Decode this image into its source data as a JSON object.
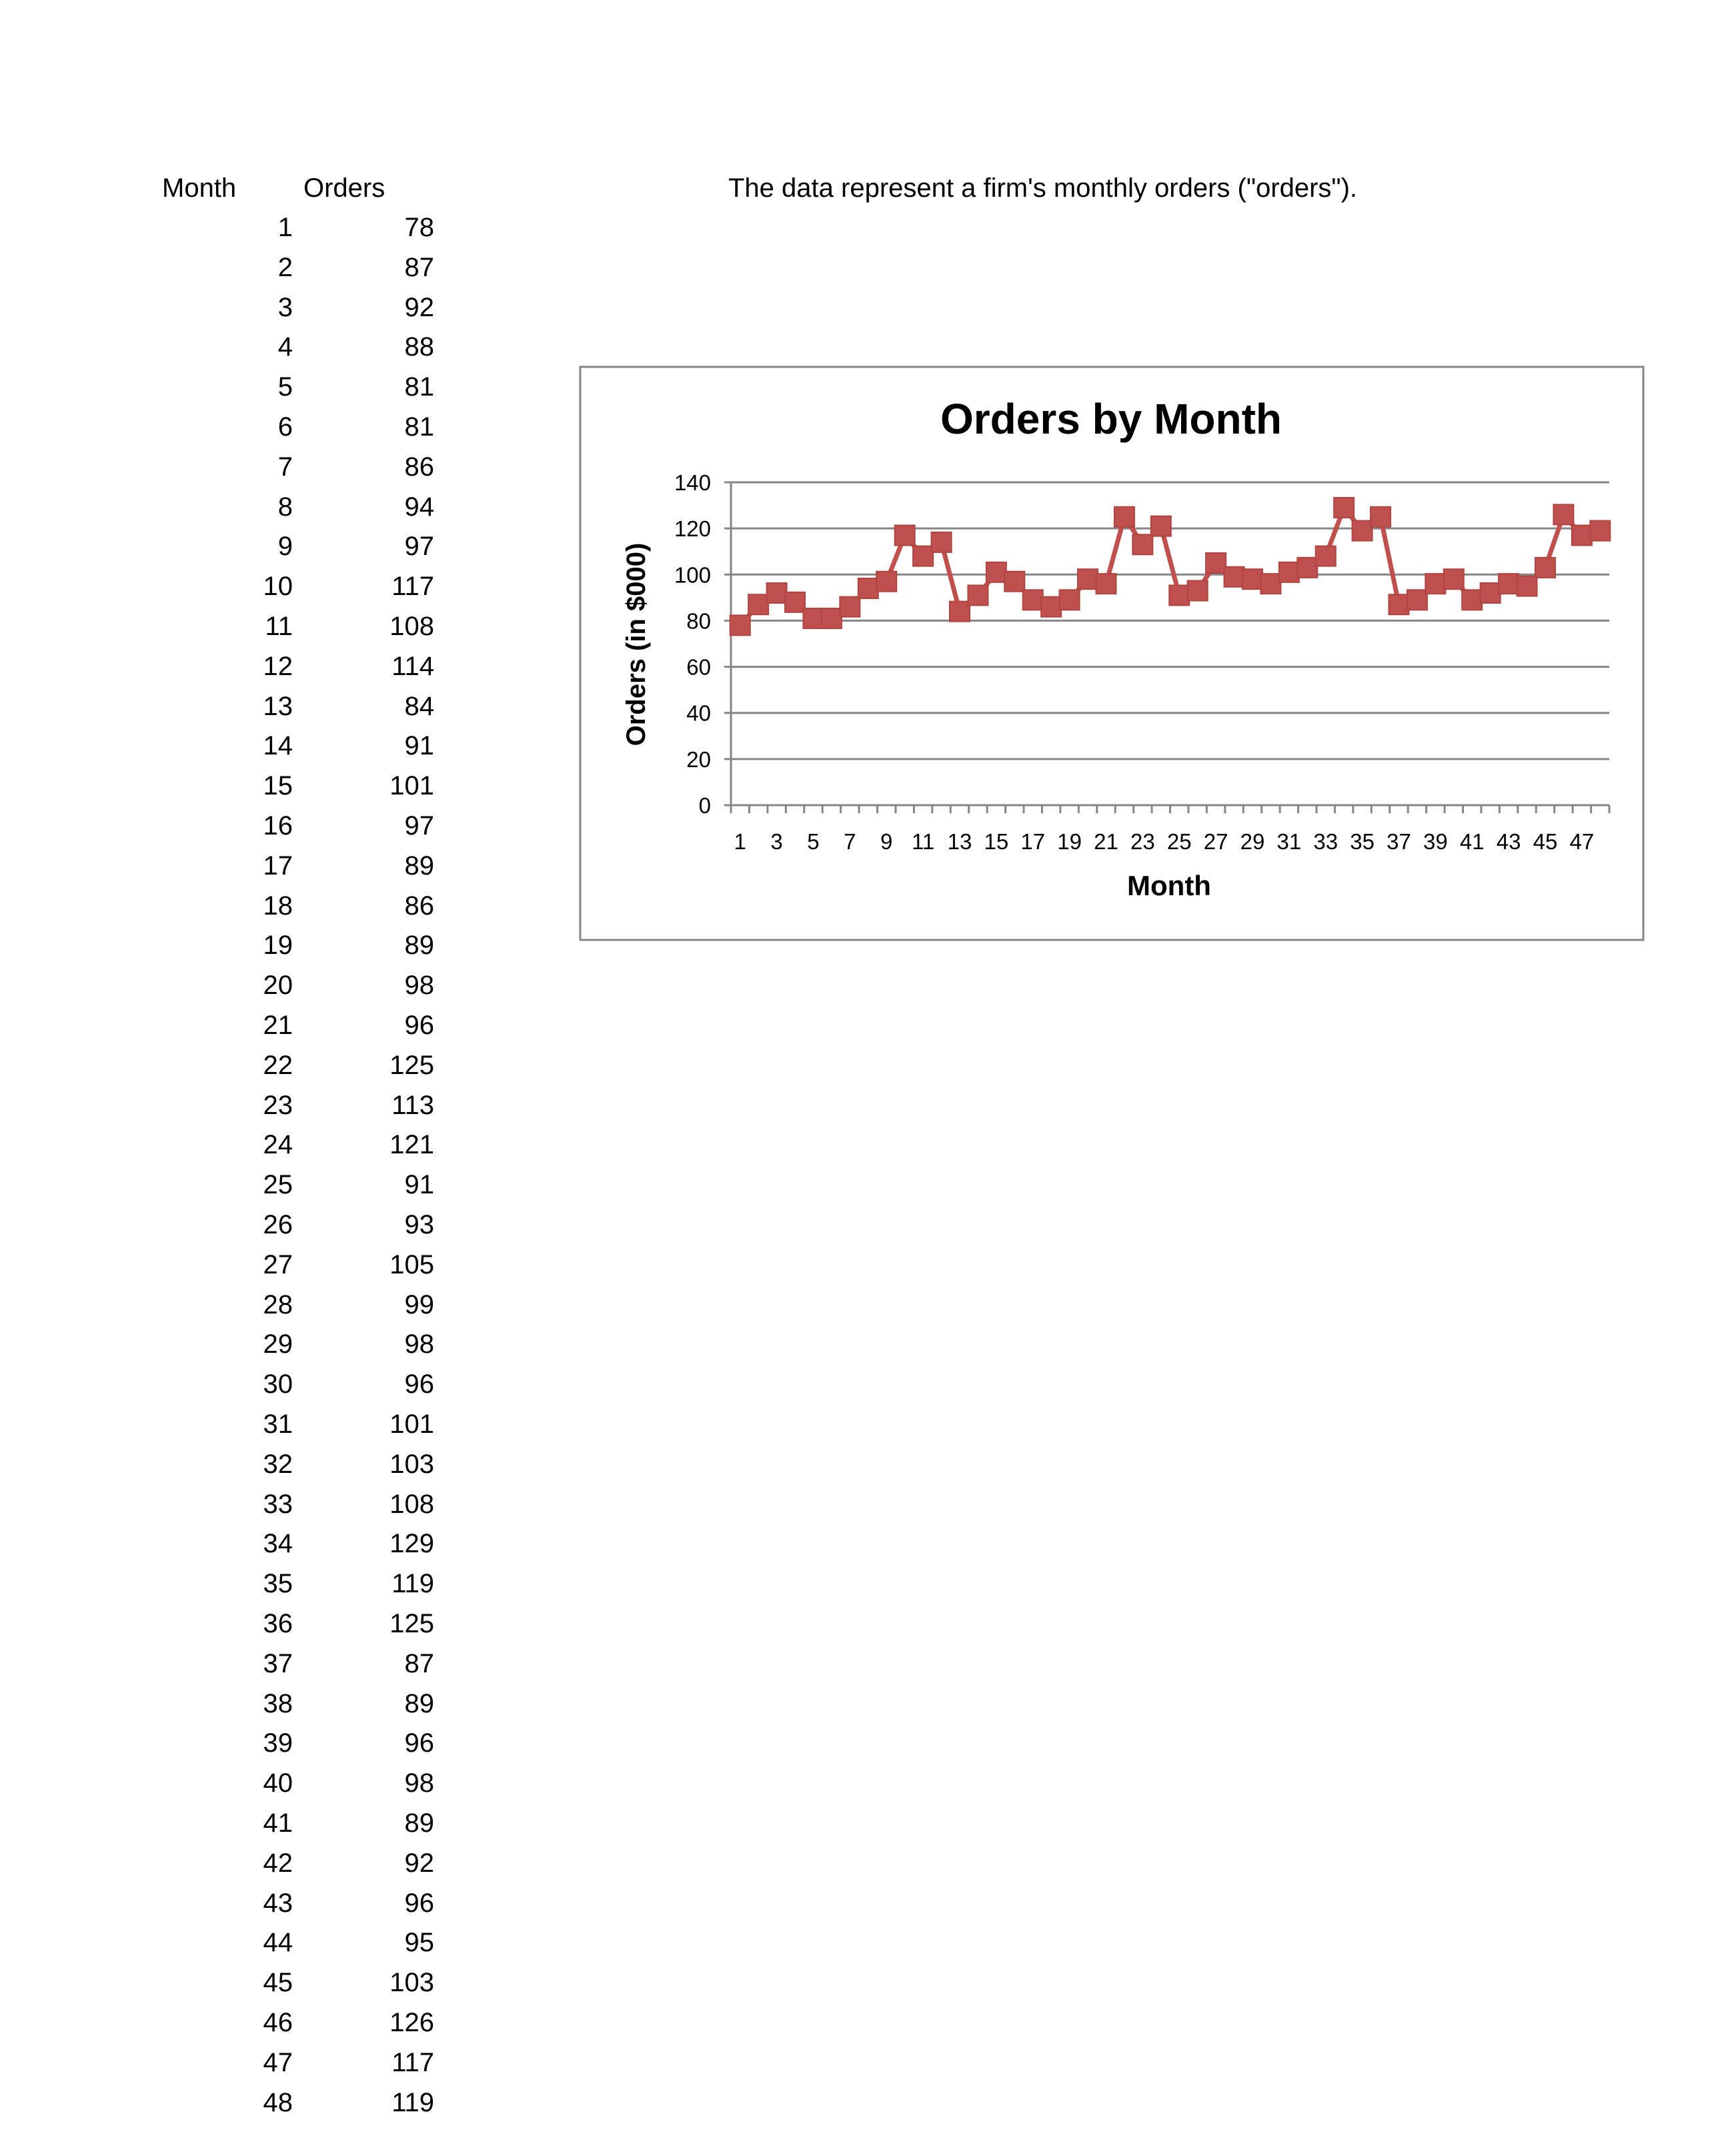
{
  "table": {
    "headers": [
      "Month",
      "Orders"
    ],
    "months": [
      1,
      2,
      3,
      4,
      5,
      6,
      7,
      8,
      9,
      10,
      11,
      12,
      13,
      14,
      15,
      16,
      17,
      18,
      19,
      20,
      21,
      22,
      23,
      24,
      25,
      26,
      27,
      28,
      29,
      30,
      31,
      32,
      33,
      34,
      35,
      36,
      37,
      38,
      39,
      40,
      41,
      42,
      43,
      44,
      45,
      46,
      47,
      48
    ],
    "orders": [
      78,
      87,
      92,
      88,
      81,
      81,
      86,
      94,
      97,
      117,
      108,
      114,
      84,
      91,
      101,
      97,
      89,
      86,
      89,
      98,
      96,
      125,
      113,
      121,
      91,
      93,
      105,
      99,
      98,
      96,
      101,
      103,
      108,
      129,
      119,
      125,
      87,
      89,
      96,
      98,
      89,
      92,
      96,
      95,
      103,
      126,
      117,
      119
    ]
  },
  "note": "The data represent a firm's monthly orders (\"orders\").",
  "chart_data": {
    "type": "line",
    "title": "Orders by Month",
    "xlabel": "Month",
    "ylabel": "Orders (in $000)",
    "categories": [
      1,
      2,
      3,
      4,
      5,
      6,
      7,
      8,
      9,
      10,
      11,
      12,
      13,
      14,
      15,
      16,
      17,
      18,
      19,
      20,
      21,
      22,
      23,
      24,
      25,
      26,
      27,
      28,
      29,
      30,
      31,
      32,
      33,
      34,
      35,
      36,
      37,
      38,
      39,
      40,
      41,
      42,
      43,
      44,
      45,
      46,
      47,
      48
    ],
    "x_tick_labels": [
      "1",
      "3",
      "5",
      "7",
      "9",
      "11",
      "13",
      "15",
      "17",
      "19",
      "21",
      "23",
      "25",
      "27",
      "29",
      "31",
      "33",
      "35",
      "37",
      "39",
      "41",
      "43",
      "45",
      "47"
    ],
    "y_tick_labels": [
      "0",
      "20",
      "40",
      "60",
      "80",
      "100",
      "120",
      "140"
    ],
    "ylim": [
      0,
      140
    ],
    "y_step": 20,
    "grid": true,
    "legend": "none",
    "marker": "square",
    "series": [
      {
        "values": [
          78,
          87,
          92,
          88,
          81,
          81,
          86,
          94,
          97,
          117,
          108,
          114,
          84,
          91,
          101,
          97,
          89,
          86,
          89,
          98,
          96,
          125,
          113,
          121,
          91,
          93,
          105,
          99,
          98,
          96,
          101,
          103,
          108,
          129,
          119,
          125,
          87,
          89,
          96,
          98,
          89,
          92,
          96,
          95,
          103,
          126,
          117,
          119
        ]
      }
    ],
    "colors": {
      "series": "#c0504d",
      "series_marker": "#c0504d",
      "grid": "#868686",
      "frame": "#868686"
    }
  }
}
